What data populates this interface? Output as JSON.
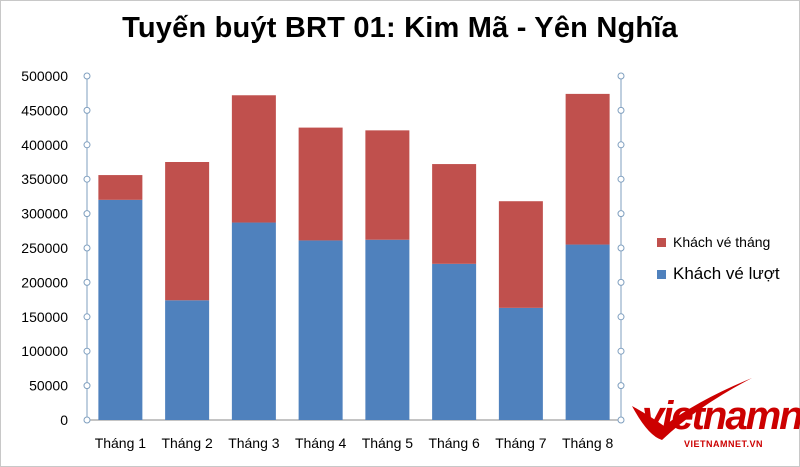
{
  "colors": {
    "lower": "#4f81bd",
    "upper": "#c0504d",
    "axis": "#7f9fbf",
    "axis_text": "#000000",
    "brand": "#cc0000"
  },
  "chart_data": {
    "type": "bar",
    "stacked": true,
    "title": "Tuyến buýt BRT 01: Kim Mã - Yên Nghĩa",
    "categories": [
      "Tháng 1",
      "Tháng 2",
      "Tháng 3",
      "Tháng 4",
      "Tháng 5",
      "Tháng 6",
      "Tháng 7",
      "Tháng 8"
    ],
    "series": [
      {
        "name": "Khách vé lượt",
        "values": [
          320000,
          174000,
          287000,
          261000,
          262000,
          227000,
          163000,
          255000
        ]
      },
      {
        "name": "Khách vé tháng",
        "values": [
          36000,
          201000,
          185000,
          164000,
          159000,
          145000,
          155000,
          219000
        ]
      }
    ],
    "ylim": [
      0,
      500000
    ],
    "yticks": [
      "500000",
      "450000",
      "400000",
      "350000",
      "300000",
      "250000",
      "200000",
      "150000",
      "100000",
      "50000",
      "0"
    ],
    "grid": false,
    "legend_position": "right"
  },
  "legend": {
    "monthly": "Khách vé tháng",
    "single": "Khách vé lượt"
  },
  "watermark": {
    "logo": "vietnamnet",
    "url": "VIETNAMNET.VN"
  }
}
